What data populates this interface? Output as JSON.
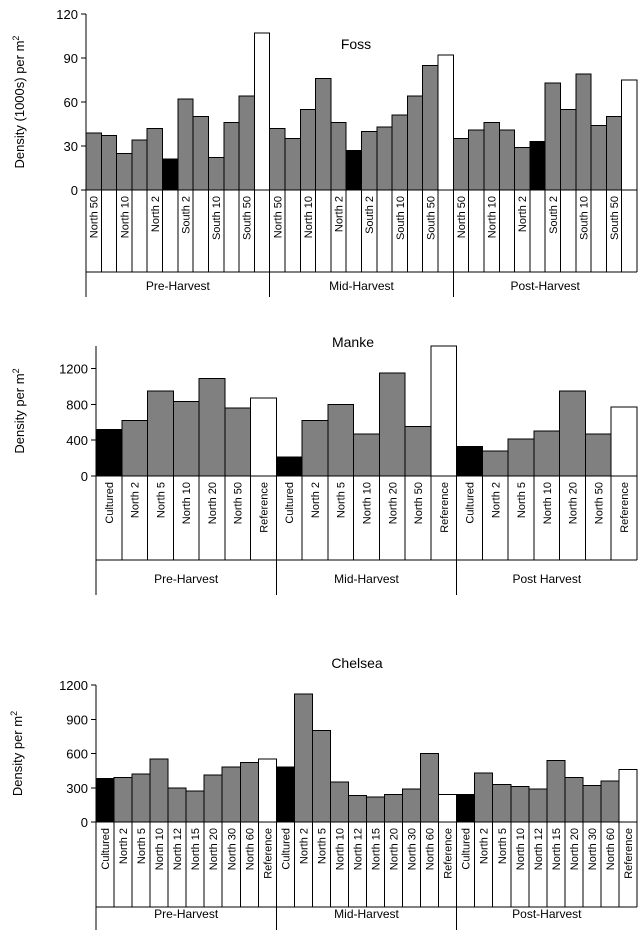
{
  "colors": {
    "cultured": "#000000",
    "neighbor": "#808080",
    "reference": "#ffffff"
  },
  "chart_data": [
    {
      "type": "bar",
      "title": "Foss",
      "ylabel": "Density (1000s) per m",
      "ylabel_sup": "2",
      "ylim": [
        0,
        120
      ],
      "yticks": [
        "0",
        "30",
        "60",
        "90",
        "120"
      ],
      "groups": [
        {
          "name": "Pre-Harvest",
          "categories": [
            "North 50",
            "",
            "North 10",
            "",
            "North 2",
            "",
            "South 2",
            "",
            "South 10",
            "",
            "South 50",
            ""
          ],
          "values": [
            39,
            37,
            25,
            34,
            42,
            21,
            62,
            50,
            22,
            46,
            64,
            107
          ],
          "kinds": [
            "n",
            "n",
            "n",
            "n",
            "n",
            "c",
            "n",
            "n",
            "n",
            "n",
            "n",
            "r"
          ]
        },
        {
          "name": "Mid-Harvest",
          "categories": [
            "North 50",
            "",
            "North 10",
            "",
            "North 2",
            "",
            "South 2",
            "",
            "South 10",
            "",
            "South 50",
            ""
          ],
          "values": [
            42,
            35,
            55,
            76,
            46,
            27,
            40,
            43,
            51,
            64,
            85,
            92
          ],
          "kinds": [
            "n",
            "n",
            "n",
            "n",
            "n",
            "c",
            "n",
            "n",
            "n",
            "n",
            "n",
            "r"
          ]
        },
        {
          "name": "Post-Harvest",
          "categories": [
            "North 50",
            "",
            "North 10",
            "",
            "North 2",
            "",
            "South 2",
            "",
            "South 10",
            "",
            "South 50",
            ""
          ],
          "values": [
            35,
            41,
            46,
            41,
            29,
            33,
            73,
            55,
            79,
            44,
            50,
            75
          ],
          "kinds": [
            "n",
            "n",
            "n",
            "n",
            "n",
            "c",
            "n",
            "n",
            "n",
            "n",
            "n",
            "r"
          ]
        }
      ]
    },
    {
      "type": "bar",
      "title": "Manke",
      "ylabel": "Density per m",
      "ylabel_sup": "2",
      "ylim": [
        0,
        1450
      ],
      "yticks": [
        "0",
        "400",
        "800",
        "1200"
      ],
      "ytick_values": [
        0,
        400,
        800,
        1200
      ],
      "groups": [
        {
          "name": "Pre-Harvest",
          "categories": [
            "Cultured",
            "North 2",
            "North 5",
            "North 10",
            "North 20",
            "North 50",
            "Reference"
          ],
          "values": [
            520,
            620,
            950,
            830,
            1090,
            760,
            870
          ],
          "kinds": [
            "c",
            "n",
            "n",
            "n",
            "n",
            "n",
            "r"
          ]
        },
        {
          "name": "Mid-Harvest",
          "categories": [
            "Cultured",
            "North 2",
            "North 5",
            "North 10",
            "North 20",
            "North 50",
            "Reference"
          ],
          "values": [
            210,
            620,
            800,
            470,
            1150,
            550,
            1450
          ],
          "kinds": [
            "c",
            "n",
            "n",
            "n",
            "n",
            "n",
            "r"
          ]
        },
        {
          "name": "Post Harvest",
          "categories": [
            "Cultured",
            "North 2",
            "North 5",
            "North 10",
            "North 20",
            "North 50",
            "Reference"
          ],
          "values": [
            330,
            280,
            410,
            500,
            950,
            470,
            770
          ],
          "kinds": [
            "c",
            "n",
            "n",
            "n",
            "n",
            "n",
            "r"
          ]
        }
      ]
    },
    {
      "type": "bar",
      "title": "Chelsea",
      "ylabel": "Density per m",
      "ylabel_sup": "2",
      "ylim": [
        0,
        1200
      ],
      "yticks": [
        "0",
        "300",
        "600",
        "900",
        "1200"
      ],
      "groups": [
        {
          "name": "Pre-Harvest",
          "categories": [
            "Cultured",
            "North 2",
            "North 5",
            "North 10",
            "North 12",
            "North 15",
            "North 20",
            "North 30",
            "North 60",
            "Reference"
          ],
          "values": [
            380,
            390,
            420,
            550,
            300,
            270,
            410,
            480,
            520,
            550
          ],
          "kinds": [
            "c",
            "n",
            "n",
            "n",
            "n",
            "n",
            "n",
            "n",
            "n",
            "r"
          ]
        },
        {
          "name": "Mid-Harvest",
          "categories": [
            "Cultured",
            "North 2",
            "North 5",
            "North 10",
            "North 12",
            "North 15",
            "North 20",
            "North 30",
            "North 60",
            "Reference"
          ],
          "values": [
            480,
            1120,
            800,
            350,
            230,
            220,
            240,
            290,
            600,
            240
          ],
          "kinds": [
            "c",
            "n",
            "n",
            "n",
            "n",
            "n",
            "n",
            "n",
            "n",
            "r"
          ]
        },
        {
          "name": "Post-Harvest",
          "categories": [
            "Cultured",
            "North 2",
            "North 5",
            "North 10",
            "North 12",
            "North 15",
            "North 20",
            "North 30",
            "North 60",
            "Reference"
          ],
          "values": [
            240,
            430,
            330,
            310,
            290,
            540,
            390,
            320,
            360,
            460
          ],
          "kinds": [
            "c",
            "n",
            "n",
            "n",
            "n",
            "n",
            "n",
            "n",
            "n",
            "r"
          ]
        }
      ]
    }
  ]
}
